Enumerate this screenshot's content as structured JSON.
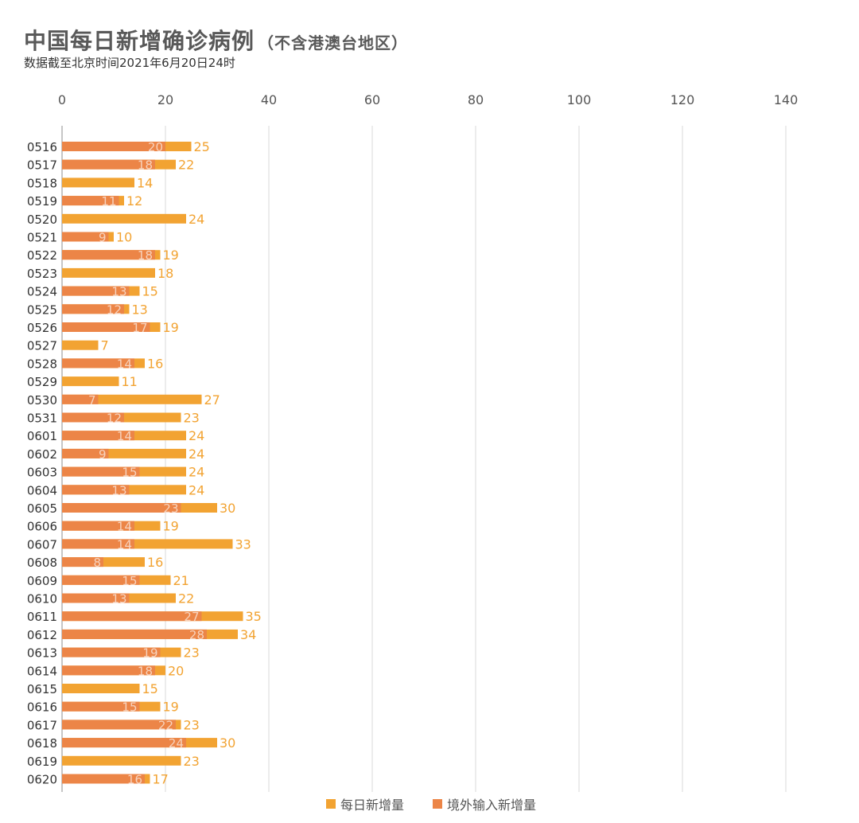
{
  "title": "中国每日新增确诊病例",
  "title_note": "（不含港澳台地区）",
  "subtitle": "数据截至北京时间2021年6月20日24时",
  "colors": {
    "total": "#F2A332",
    "imported": "#EC8547",
    "gridline": "#D9D9D9",
    "axis_text": "#555555"
  },
  "chart_data": {
    "type": "bar",
    "orientation": "horizontal",
    "xlim": [
      0,
      140
    ],
    "x_ticks": [
      0,
      20,
      40,
      60,
      80,
      100,
      120,
      140
    ],
    "grid": true,
    "legend_position": "bottom",
    "categories": [
      "0516",
      "0517",
      "0518",
      "0519",
      "0520",
      "0521",
      "0522",
      "0523",
      "0524",
      "0525",
      "0526",
      "0527",
      "0528",
      "0529",
      "0530",
      "0531",
      "0601",
      "0602",
      "0603",
      "0604",
      "0605",
      "0606",
      "0607",
      "0608",
      "0609",
      "0610",
      "0611",
      "0612",
      "0613",
      "0614",
      "0615",
      "0616",
      "0617",
      "0618",
      "0619",
      "0620"
    ],
    "series": [
      {
        "name": "每日新增量",
        "values": [
          25,
          22,
          14,
          12,
          24,
          10,
          19,
          18,
          15,
          13,
          19,
          7,
          16,
          11,
          27,
          23,
          24,
          24,
          24,
          24,
          30,
          19,
          33,
          16,
          21,
          22,
          35,
          34,
          23,
          20,
          15,
          19,
          23,
          30,
          23,
          17
        ]
      },
      {
        "name": "境外输入新增量",
        "values": [
          20,
          18,
          null,
          11,
          null,
          9,
          18,
          null,
          13,
          12,
          17,
          null,
          14,
          null,
          7,
          12,
          14,
          9,
          15,
          13,
          23,
          14,
          14,
          8,
          15,
          13,
          27,
          28,
          19,
          18,
          null,
          15,
          22,
          24,
          null,
          16
        ]
      }
    ]
  }
}
